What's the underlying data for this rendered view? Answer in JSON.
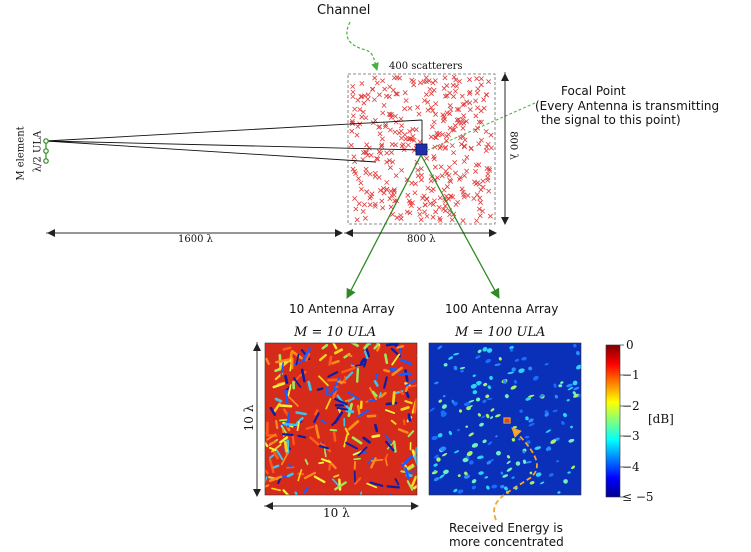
{
  "channel": {
    "label": "Channel",
    "scatterers_label": "400 scatterers",
    "size_label": "800 λ",
    "width_label": "800 λ"
  },
  "array": {
    "element_label": "M element",
    "spacing_label": "λ/2 ULA",
    "distance_label": "1600 λ"
  },
  "focal_point": {
    "title": "Focal Point",
    "note_line1": "(Every Antenna is transmitting",
    "note_line2": "the signal to this point)"
  },
  "panels": {
    "left": {
      "caption": "10 Antenna Array",
      "title": "M = 10 ULA"
    },
    "right": {
      "caption": "100 Antenna Array",
      "title": "M = 100 ULA"
    },
    "x_label": "10 λ",
    "y_label": "10 λ"
  },
  "colorbar": {
    "unit": "[dB]",
    "ticks": [
      "0",
      "−1",
      "−2",
      "−3",
      "−4",
      "≤ −5"
    ]
  },
  "annotation": {
    "line1": "Received Energy is",
    "line2": "more concentrated"
  },
  "colors": {
    "scatter": "#e33b3b",
    "arrow_green": "#2f8a24",
    "arrow_orange": "#f5a623",
    "focal": "#1f2fa8"
  }
}
